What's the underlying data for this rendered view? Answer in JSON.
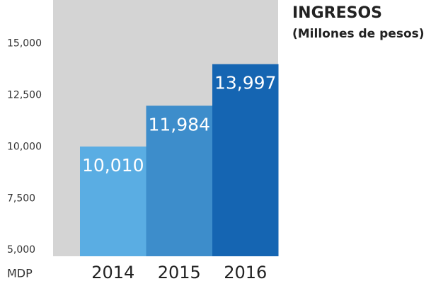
{
  "chart_data": {
    "type": "bar",
    "title": "INGRESOS",
    "subtitle": "(Millones de pesos)",
    "y_axis_label": "MDP",
    "categories": [
      "2014",
      "2015",
      "2016"
    ],
    "values": [
      10010,
      11984,
      13997
    ],
    "value_labels": [
      "10,010",
      "11,984",
      "13,997"
    ],
    "colors": [
      "#5aade3",
      "#3d8dcb",
      "#1565b2"
    ],
    "background": "#d4d4d4",
    "ylim": [
      4700,
      17100
    ],
    "yticks": [
      {
        "value": 5000,
        "label": "5,000"
      },
      {
        "value": 7500,
        "label": "7,500"
      },
      {
        "value": 10000,
        "label": "10,000"
      },
      {
        "value": 12500,
        "label": "12,500"
      },
      {
        "value": 15000,
        "label": "15,000"
      }
    ]
  }
}
